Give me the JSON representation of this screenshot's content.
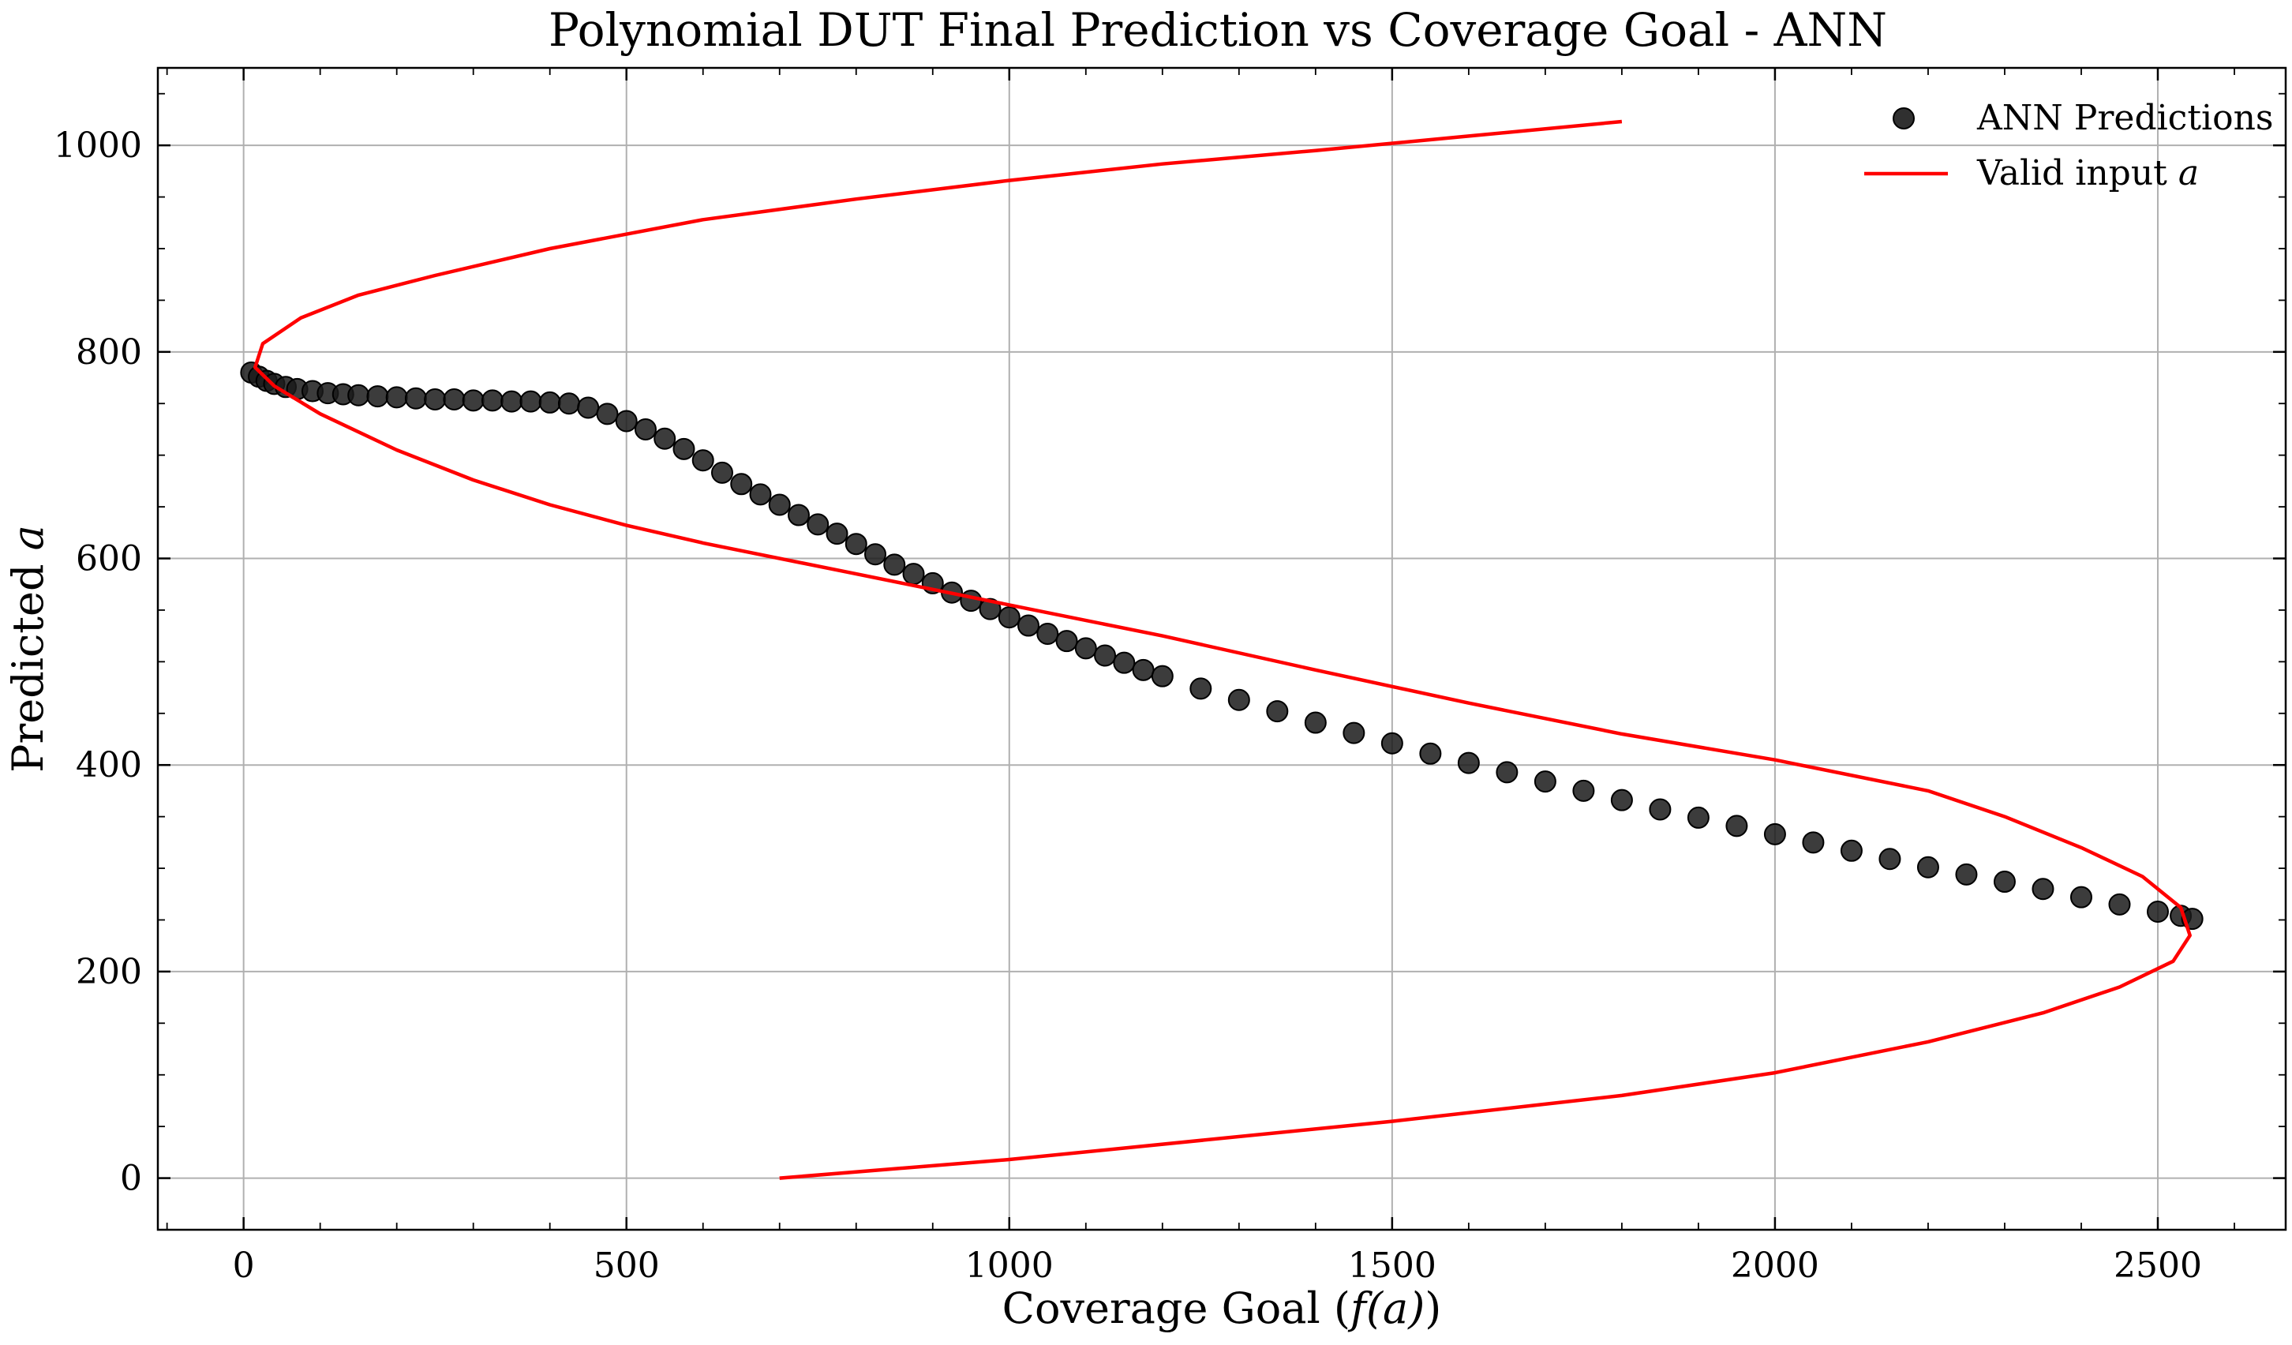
{
  "chart_data": {
    "type": "scatter",
    "title": "Polynomial DUT Final Prediction vs Coverage Goal - ANN",
    "xlabel": "Coverage Goal (",
    "xlabel_math": "f(a)",
    "xlabel_end": ")",
    "ylabel": "Predicted ",
    "ylabel_math": "a",
    "xlim": [
      -112,
      2667
    ],
    "ylim": [
      -50,
      1075
    ],
    "xticks": [
      0,
      500,
      1000,
      1500,
      2000,
      2500
    ],
    "yticks": [
      0,
      200,
      400,
      600,
      800,
      1000
    ],
    "xtick_labels": [
      "0",
      "500",
      "1000",
      "1500",
      "2000",
      "2500"
    ],
    "ytick_labels": [
      "0",
      "200",
      "400",
      "600",
      "800",
      "1000"
    ],
    "grid": true,
    "legend_position": "top-right",
    "legend": [
      {
        "label": "ANN Predictions",
        "marker": "circle",
        "color": "#1a1a1a"
      },
      {
        "label": "Valid input ",
        "label_math": "a",
        "marker": "line",
        "color": "#ff0000"
      }
    ],
    "series": [
      {
        "name": "ANN Predictions",
        "kind": "scatter",
        "color": "#1a1a1a",
        "points": [
          [
            10,
            780
          ],
          [
            20,
            776
          ],
          [
            30,
            772
          ],
          [
            40,
            769
          ],
          [
            55,
            766
          ],
          [
            70,
            764
          ],
          [
            90,
            762
          ],
          [
            110,
            760
          ],
          [
            130,
            759
          ],
          [
            150,
            758
          ],
          [
            175,
            757
          ],
          [
            200,
            756
          ],
          [
            225,
            755
          ],
          [
            250,
            754
          ],
          [
            275,
            754
          ],
          [
            300,
            753
          ],
          [
            325,
            753
          ],
          [
            350,
            752
          ],
          [
            375,
            752
          ],
          [
            400,
            751
          ],
          [
            425,
            750
          ],
          [
            450,
            746
          ],
          [
            475,
            740
          ],
          [
            500,
            733
          ],
          [
            525,
            725
          ],
          [
            550,
            716
          ],
          [
            575,
            706
          ],
          [
            600,
            695
          ],
          [
            625,
            683
          ],
          [
            650,
            672
          ],
          [
            675,
            662
          ],
          [
            700,
            652
          ],
          [
            725,
            642
          ],
          [
            750,
            633
          ],
          [
            775,
            624
          ],
          [
            800,
            614
          ],
          [
            825,
            604
          ],
          [
            850,
            594
          ],
          [
            875,
            585
          ],
          [
            900,
            576
          ],
          [
            925,
            567
          ],
          [
            950,
            559
          ],
          [
            975,
            551
          ],
          [
            1000,
            543
          ],
          [
            1025,
            535
          ],
          [
            1050,
            527
          ],
          [
            1075,
            520
          ],
          [
            1100,
            513
          ],
          [
            1125,
            506
          ],
          [
            1150,
            499
          ],
          [
            1175,
            492
          ],
          [
            1200,
            486
          ],
          [
            1250,
            474
          ],
          [
            1300,
            463
          ],
          [
            1350,
            452
          ],
          [
            1400,
            441
          ],
          [
            1450,
            431
          ],
          [
            1500,
            421
          ],
          [
            1550,
            411
          ],
          [
            1600,
            402
          ],
          [
            1650,
            393
          ],
          [
            1700,
            384
          ],
          [
            1750,
            375
          ],
          [
            1800,
            366
          ],
          [
            1850,
            357
          ],
          [
            1900,
            349
          ],
          [
            1950,
            341
          ],
          [
            2000,
            333
          ],
          [
            2050,
            325
          ],
          [
            2100,
            317
          ],
          [
            2150,
            309
          ],
          [
            2200,
            301
          ],
          [
            2250,
            294
          ],
          [
            2300,
            287
          ],
          [
            2350,
            280
          ],
          [
            2400,
            272
          ],
          [
            2450,
            265
          ],
          [
            2500,
            258
          ],
          [
            2530,
            254
          ],
          [
            2545,
            251
          ]
        ]
      },
      {
        "name": "Valid input a",
        "kind": "line",
        "color": "#ff0000",
        "points": [
          [
            700,
            0
          ],
          [
            1000,
            18
          ],
          [
            1500,
            55
          ],
          [
            1800,
            80
          ],
          [
            2000,
            102
          ],
          [
            2200,
            132
          ],
          [
            2350,
            160
          ],
          [
            2450,
            185
          ],
          [
            2520,
            210
          ],
          [
            2542,
            235
          ],
          [
            2530,
            262
          ],
          [
            2480,
            292
          ],
          [
            2400,
            320
          ],
          [
            2300,
            350
          ],
          [
            2200,
            375
          ],
          [
            2000,
            405
          ],
          [
            1800,
            430
          ],
          [
            1600,
            460
          ],
          [
            1400,
            492
          ],
          [
            1200,
            525
          ],
          [
            1000,
            555
          ],
          [
            800,
            585
          ],
          [
            600,
            615
          ],
          [
            500,
            632
          ],
          [
            400,
            652
          ],
          [
            300,
            676
          ],
          [
            200,
            705
          ],
          [
            100,
            740
          ],
          [
            40,
            767
          ],
          [
            15,
            785
          ],
          [
            25,
            808
          ],
          [
            75,
            833
          ],
          [
            150,
            855
          ],
          [
            250,
            874
          ],
          [
            400,
            900
          ],
          [
            600,
            928
          ],
          [
            800,
            948
          ],
          [
            1000,
            966
          ],
          [
            1200,
            982
          ],
          [
            1400,
            995
          ],
          [
            1600,
            1009
          ],
          [
            1800,
            1023
          ]
        ]
      }
    ]
  }
}
